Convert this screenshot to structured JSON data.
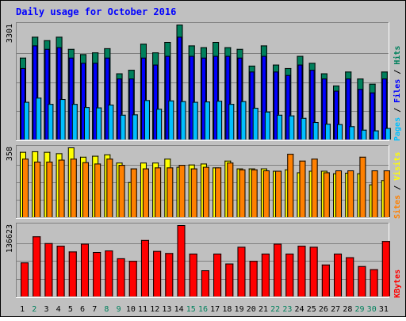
{
  "chart_data": {
    "type": "bar",
    "title": "Daily usage for October 2016",
    "categories": [
      "1",
      "2",
      "3",
      "4",
      "5",
      "6",
      "7",
      "8",
      "9",
      "10",
      "11",
      "12",
      "13",
      "14",
      "15",
      "16",
      "17",
      "18",
      "19",
      "20",
      "21",
      "22",
      "23",
      "24",
      "25",
      "26",
      "27",
      "28",
      "29",
      "30",
      "31"
    ],
    "weekend_days": [
      "2",
      "8",
      "9",
      "15",
      "16",
      "22",
      "23",
      "29",
      "30"
    ],
    "panels": [
      {
        "id": "top",
        "ymax_label": "3301",
        "ylim": [
          0,
          3301
        ],
        "axis_legend": [
          {
            "text": "Pages",
            "color": "#00bfff"
          },
          {
            "text": "Files",
            "color": "#0000ff"
          },
          {
            "text": "Hits",
            "color": "#00805c"
          }
        ],
        "series": [
          {
            "name": "Hits",
            "color": "#00805c",
            "values": [
              2350,
              2950,
              2850,
              2950,
              2600,
              2450,
              2500,
              2620,
              1900,
              2000,
              2750,
              2500,
              2800,
              3301,
              2700,
              2650,
              2800,
              2650,
              2600,
              2120,
              2700,
              2150,
              2050,
              2400,
              2200,
              1900,
              1550,
              1950,
              1750,
              1600,
              1950
            ]
          },
          {
            "name": "Files",
            "color": "#0000ff",
            "values": [
              2050,
              2700,
              2600,
              2650,
              2350,
              2200,
              2200,
              2350,
              1750,
              1750,
              2350,
              2150,
              2400,
              2950,
              2400,
              2350,
              2400,
              2400,
              2350,
              1950,
              2400,
              1950,
              1850,
              2150,
              2000,
              1750,
              1400,
              1750,
              1450,
              1350,
              1750
            ]
          },
          {
            "name": "Pages",
            "color": "#00bfff",
            "values": [
              1080,
              1200,
              1020,
              1160,
              1020,
              930,
              920,
              1000,
              710,
              720,
              1130,
              880,
              1120,
              1100,
              1080,
              1090,
              1110,
              1020,
              1100,
              910,
              800,
              710,
              690,
              620,
              500,
              450,
              440,
              380,
              280,
              260,
              330
            ]
          }
        ]
      },
      {
        "id": "middle",
        "ymax_label": "358",
        "ylim": [
          0,
          358
        ],
        "axis_legend": [
          {
            "text": "Sites",
            "color": "#ff8000"
          },
          {
            "text": "Visits",
            "color": "#ffff00"
          }
        ],
        "series": [
          {
            "name": "Visits",
            "color": "#ffff00",
            "values": [
              335,
              338,
              335,
              328,
              358,
              310,
              315,
              322,
              280,
              180,
              280,
              280,
              300,
              258,
              270,
              275,
              255,
              290,
              250,
              250,
              250,
              238,
              245,
              230,
              238,
              238,
              225,
              228,
              225,
              168,
              190
            ]
          },
          {
            "name": "Sites",
            "color": "#ff8000",
            "values": [
              300,
              285,
              285,
              295,
              300,
              282,
              275,
              300,
              268,
              250,
              250,
              255,
              255,
              268,
              250,
              258,
              255,
              280,
              245,
              245,
              240,
              238,
              325,
              290,
              300,
              230,
              240,
              240,
              310,
              240,
              240
            ]
          }
        ]
      },
      {
        "id": "bottom",
        "ymax_label": "136623",
        "ylim": [
          0,
          136623
        ],
        "axis_legend": [
          {
            "text": "KBytes",
            "color": "#ff0000"
          }
        ],
        "series": [
          {
            "name": "KBytes",
            "color": "#ff0000",
            "values": [
              65000,
              115000,
              102000,
              97000,
              86000,
              101000,
              85000,
              88000,
              73000,
              68000,
              108000,
              87000,
              83000,
              136623,
              82000,
              50000,
              82000,
              63000,
              95000,
              68000,
              82000,
              101000,
              82000,
              97000,
              95000,
              61000,
              82000,
              75000,
              58000,
              52000,
              106000
            ]
          }
        ]
      }
    ]
  }
}
